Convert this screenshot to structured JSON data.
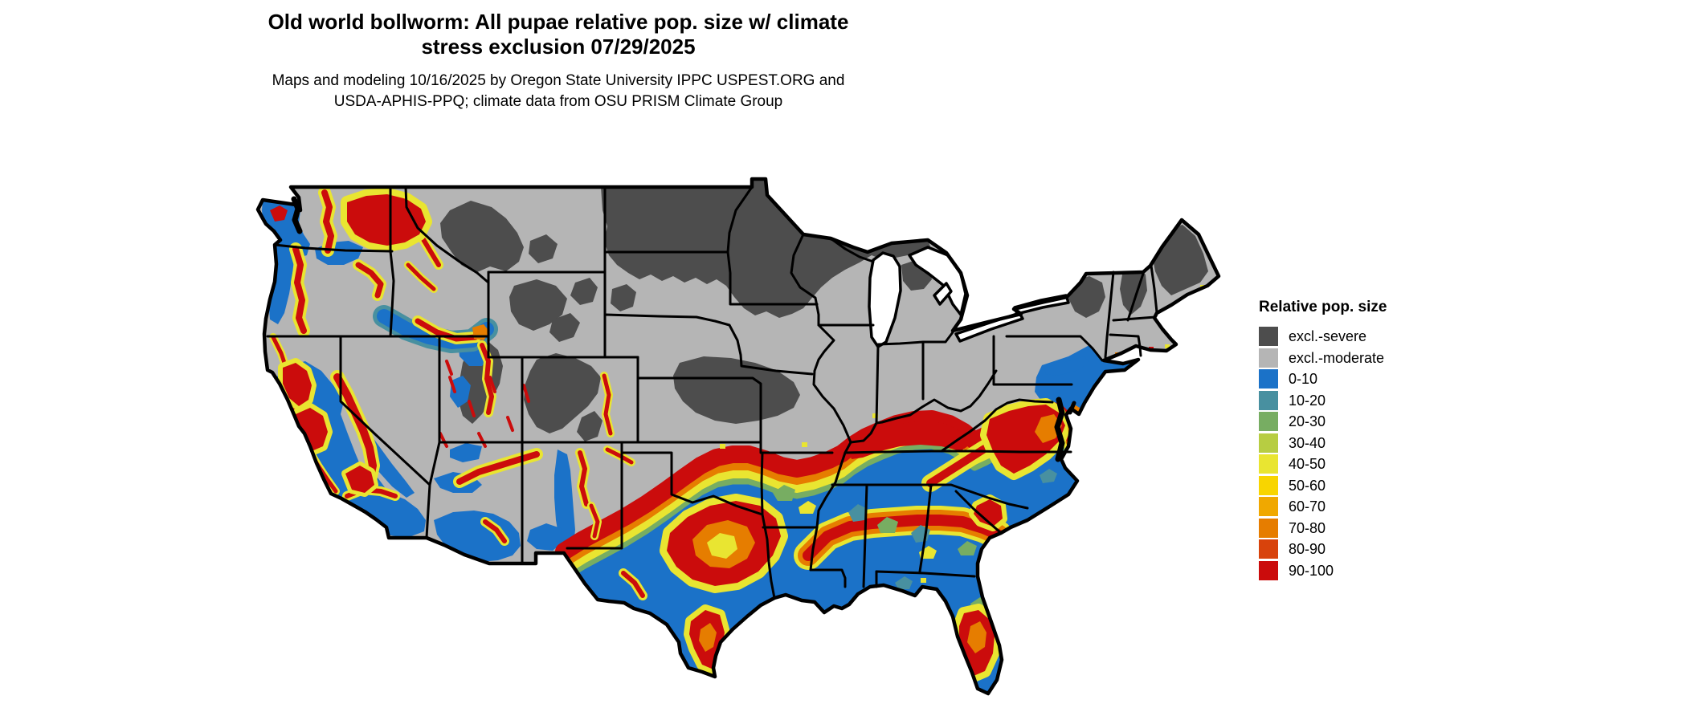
{
  "title": {
    "line1": "Old world bollworm: All pupae relative pop. size w/ climate",
    "line2": "stress exclusion 07/29/2025"
  },
  "subtitle": {
    "line1": "Maps and modeling 10/16/2025 by Oregon State University IPPC USPEST.ORG and",
    "line2": "USDA-APHIS-PPQ; climate data from OSU PRISM Climate Group"
  },
  "legend": {
    "title": "Relative pop. size",
    "items": [
      {
        "label": "excl.-severe",
        "color": "#4d4d4d"
      },
      {
        "label": "excl.-moderate",
        "color": "#b5b5b5"
      },
      {
        "label": "0-10",
        "color": "#1b72c8"
      },
      {
        "label": "10-20",
        "color": "#4890a0"
      },
      {
        "label": "20-30",
        "color": "#77ad62"
      },
      {
        "label": "30-40",
        "color": "#b7cd42"
      },
      {
        "label": "40-50",
        "color": "#e9e531"
      },
      {
        "label": "50-60",
        "color": "#f8d500"
      },
      {
        "label": "60-70",
        "color": "#f0a800"
      },
      {
        "label": "70-80",
        "color": "#e67d00"
      },
      {
        "label": "80-90",
        "color": "#d8430c"
      },
      {
        "label": "90-100",
        "color": "#cb0c0c"
      }
    ]
  },
  "palette": {
    "excl_severe": "#4d4d4d",
    "excl_moderate": "#b5b5b5",
    "v0_10": "#1b72c8",
    "v10_20": "#4890a0",
    "v20_30": "#77ad62",
    "v30_40": "#b7cd42",
    "v40_50": "#e9e531",
    "v50_60": "#f8d500",
    "v60_70": "#f0a800",
    "v70_80": "#e67d00",
    "v80_90": "#d8430c",
    "v90_100": "#cb0c0c",
    "outline": "#000000",
    "water": "#ffffff"
  },
  "map": {
    "region": "contiguous United States"
  }
}
